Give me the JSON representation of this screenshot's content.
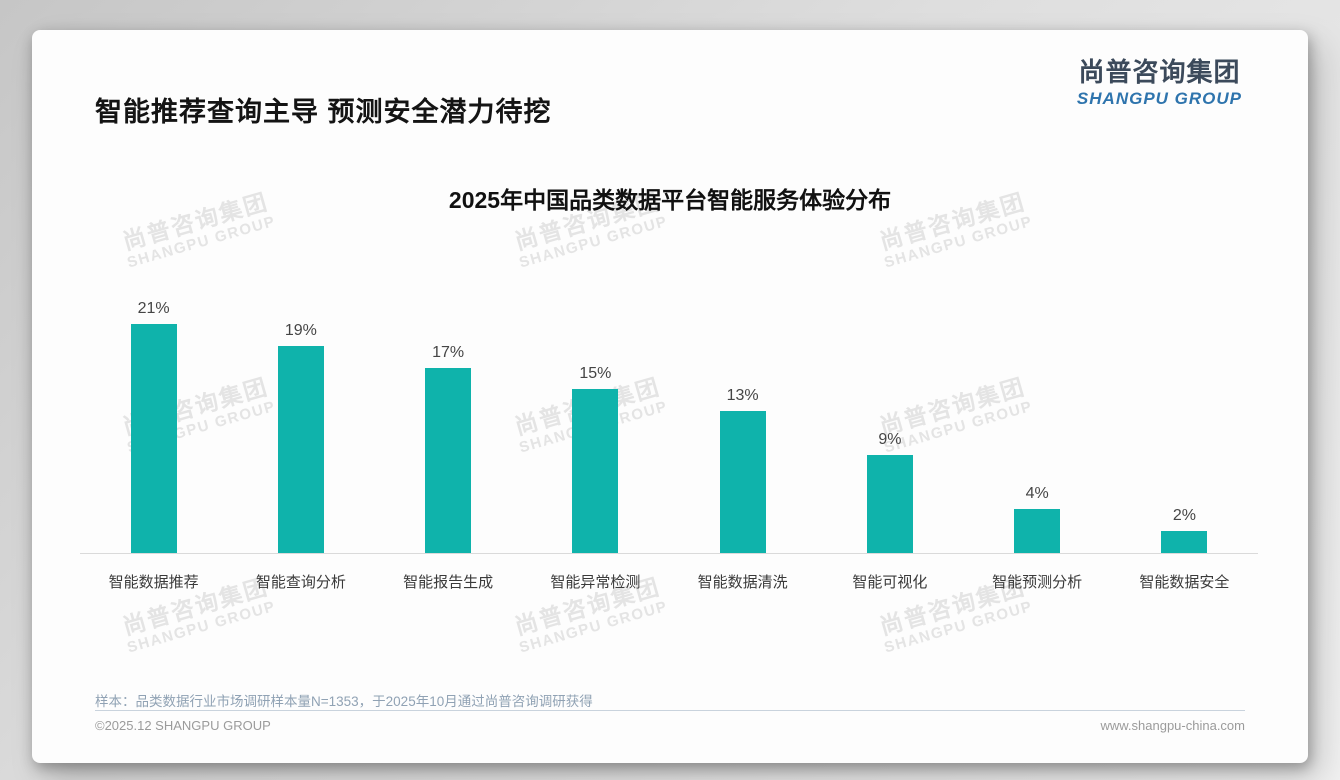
{
  "header": {
    "headline": "智能推荐查询主导 预测安全潜力待挖",
    "logo_cn": "尚普咨询集团",
    "logo_en": "SHANGPU GROUP"
  },
  "watermark": {
    "cn": "尚普咨询集团",
    "en": "SHANGPU GROUP"
  },
  "chart_data": {
    "type": "bar",
    "title": "2025年中国品类数据平台智能服务体验分布",
    "categories": [
      "智能数据推荐",
      "智能查询分析",
      "智能报告生成",
      "智能异常检测",
      "智能数据清洗",
      "智能可视化",
      "智能预测分析",
      "智能数据安全"
    ],
    "values": [
      21,
      19,
      17,
      15,
      13,
      9,
      4,
      2
    ],
    "unit": "%",
    "bar_color": "#0fb3ab",
    "value_label_color": "#454545",
    "axis_line_color": "#dadada",
    "ylim": [
      0,
      23
    ],
    "grid": false,
    "legend": false
  },
  "footer": {
    "note": "样本：品类数据行业市场调研样本量N=1353，于2025年10月通过尚普咨询调研获得",
    "left": "©2025.12 SHANGPU GROUP",
    "right": "www.shangpu-china.com"
  },
  "colors": {
    "accent_teal": "#0fb3ab",
    "logo_navy": "#3c4a5b",
    "logo_blue": "#2e74ad",
    "note_blue_gray": "#90a2b4"
  }
}
